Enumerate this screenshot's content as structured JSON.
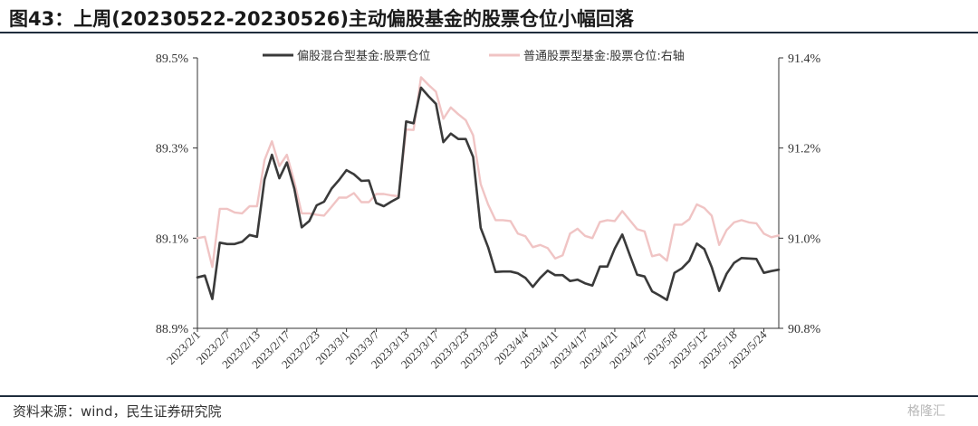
{
  "header": {
    "title": "图43：上周(20230522-20230526)主动偏股基金的股票仓位小幅回落"
  },
  "footer": {
    "source": "资料来源：wind，民生证券研究院",
    "watermark": "格隆汇"
  },
  "colors": {
    "series1": "#3a3a3a",
    "series2": "#f0c4c4",
    "rule": "#1f2d3d"
  },
  "chart_data": {
    "type": "line",
    "x": [
      "2023/2/1",
      "2023/2/2",
      "2023/2/3",
      "2023/2/6",
      "2023/2/7",
      "2023/2/8",
      "2023/2/9",
      "2023/2/10",
      "2023/2/13",
      "2023/2/14",
      "2023/2/15",
      "2023/2/16",
      "2023/2/17",
      "2023/2/20",
      "2023/2/21",
      "2023/2/22",
      "2023/2/23",
      "2023/2/24",
      "2023/2/27",
      "2023/2/28",
      "2023/3/1",
      "2023/3/2",
      "2023/3/3",
      "2023/3/6",
      "2023/3/7",
      "2023/3/8",
      "2023/3/9",
      "2023/3/10",
      "2023/3/13",
      "2023/3/14",
      "2023/3/15",
      "2023/3/16",
      "2023/3/17",
      "2023/3/20",
      "2023/3/21",
      "2023/3/22",
      "2023/3/23",
      "2023/3/24",
      "2023/3/27",
      "2023/3/28",
      "2023/3/29",
      "2023/3/30",
      "2023/3/31",
      "2023/4/3",
      "2023/4/4",
      "2023/4/6",
      "2023/4/7",
      "2023/4/10",
      "2023/4/11",
      "2023/4/12",
      "2023/4/13",
      "2023/4/14",
      "2023/4/17",
      "2023/4/18",
      "2023/4/19",
      "2023/4/20",
      "2023/4/21",
      "2023/4/24",
      "2023/4/25",
      "2023/4/26",
      "2023/4/27",
      "2023/4/28",
      "2023/5/4",
      "2023/5/5",
      "2023/5/8",
      "2023/5/9",
      "2023/5/10",
      "2023/5/11",
      "2023/5/12",
      "2023/5/15",
      "2023/5/16",
      "2023/5/17",
      "2023/5/18",
      "2023/5/19",
      "2023/5/22",
      "2023/5/23",
      "2023/5/24",
      "2023/5/25",
      "2023/5/26"
    ],
    "x_tick_labels": [
      "2023/2/1",
      "2023/2/7",
      "2023/2/13",
      "2023/2/17",
      "2023/2/23",
      "2023/3/1",
      "2023/3/7",
      "2023/3/13",
      "2023/3/17",
      "2023/3/23",
      "2023/3/29",
      "2023/4/4",
      "2023/4/11",
      "2023/4/17",
      "2023/4/21",
      "2023/4/27",
      "2023/5/8",
      "2023/5/12",
      "2023/5/18",
      "2023/5/24"
    ],
    "y_left": {
      "range": [
        88.9,
        89.5
      ],
      "ticks": [
        88.9,
        89.1,
        89.3,
        89.5
      ],
      "tick_labels": [
        "88.9%",
        "89.1%",
        "89.3%",
        "89.5%"
      ]
    },
    "y_right": {
      "range": [
        90.8,
        91.4
      ],
      "ticks": [
        90.8,
        91.0,
        91.2,
        91.4
      ],
      "tick_labels": [
        "90.8%",
        "91.0%",
        "91.2%",
        "91.4%"
      ]
    },
    "legend_position": "top",
    "grid": false,
    "series": [
      {
        "name": "偏股混合型基金:股票仓位",
        "axis": "left",
        "values": [
          89.013,
          89.017,
          88.965,
          89.09,
          89.087,
          89.087,
          89.092,
          89.107,
          89.103,
          89.23,
          89.285,
          89.233,
          89.268,
          89.21,
          89.124,
          89.138,
          89.173,
          89.181,
          89.21,
          89.229,
          89.251,
          89.242,
          89.227,
          89.228,
          89.178,
          89.171,
          89.181,
          89.19,
          89.359,
          89.355,
          89.434,
          89.415,
          89.398,
          89.313,
          89.332,
          89.32,
          89.32,
          89.28,
          89.123,
          89.08,
          89.025,
          89.026,
          89.026,
          89.022,
          89.012,
          88.992,
          89.012,
          89.028,
          89.018,
          89.018,
          89.005,
          89.008,
          89.0,
          88.995,
          89.037,
          89.037,
          89.077,
          89.108,
          89.063,
          89.019,
          89.015,
          88.982,
          88.973,
          88.963,
          89.023,
          89.033,
          89.05,
          89.088,
          89.076,
          89.036,
          88.983,
          89.021,
          89.045,
          89.056,
          89.055,
          89.054,
          89.023,
          89.027,
          89.03
        ]
      },
      {
        "name": "普通股票型基金:股票仓位:右轴",
        "axis": "right",
        "values": [
          91.0,
          91.003,
          90.936,
          91.065,
          91.065,
          91.057,
          91.055,
          91.071,
          91.071,
          91.173,
          91.215,
          91.16,
          91.185,
          91.125,
          91.055,
          91.055,
          91.052,
          91.05,
          91.07,
          91.09,
          91.09,
          91.1,
          91.08,
          91.08,
          91.098,
          91.098,
          91.095,
          91.093,
          91.241,
          91.24,
          91.357,
          91.34,
          91.325,
          91.265,
          91.29,
          91.275,
          91.262,
          91.228,
          91.12,
          91.075,
          91.04,
          91.04,
          91.038,
          91.01,
          91.004,
          90.98,
          90.985,
          90.978,
          90.955,
          90.962,
          91.01,
          91.021,
          91.005,
          91.0,
          91.036,
          91.04,
          91.038,
          91.06,
          91.04,
          91.02,
          91.015,
          90.96,
          90.964,
          90.95,
          91.03,
          91.03,
          91.042,
          91.075,
          91.067,
          91.05,
          90.985,
          91.018,
          91.035,
          91.04,
          91.035,
          91.033,
          91.01,
          91.002,
          91.006
        ]
      }
    ]
  }
}
